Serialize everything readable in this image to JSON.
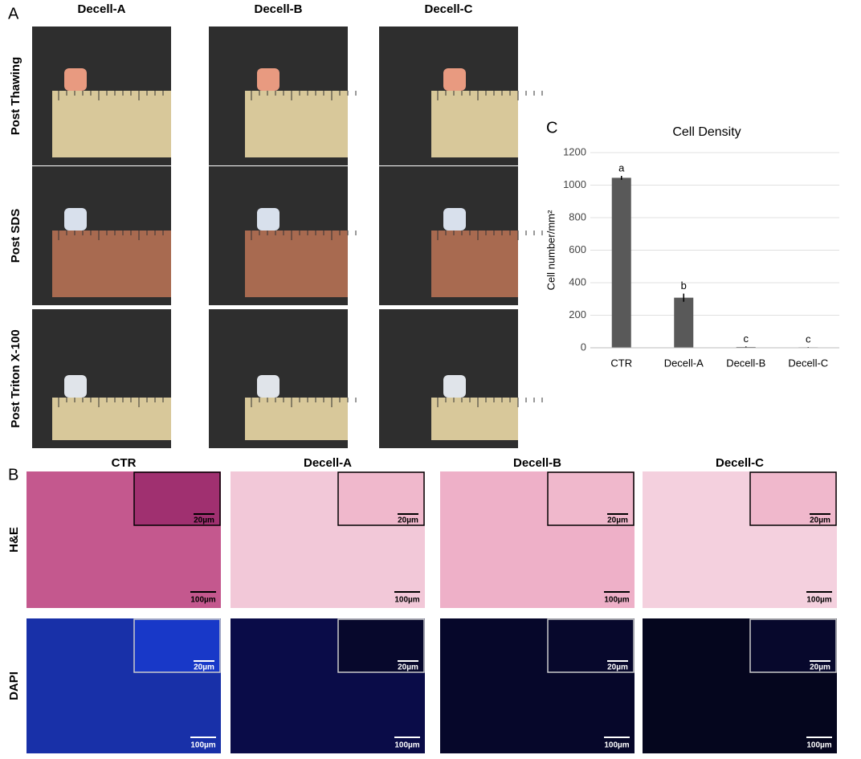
{
  "panel_a": {
    "label": "A",
    "columns": [
      "Decell-A",
      "Decell-B",
      "Decell-C"
    ],
    "rows": [
      "Post Thawing",
      "Post SDS",
      "Post Triton X-100"
    ]
  },
  "panel_b": {
    "label": "B",
    "columns": [
      "CTR",
      "Decell-A",
      "Decell-B",
      "Decell-C"
    ],
    "rows": [
      "H&E",
      "DAPI"
    ],
    "scale_main": "100µm",
    "scale_inset": "20µm"
  },
  "chart_data": {
    "panel_label": "C",
    "type": "bar",
    "title": "Cell Density",
    "y_label": "Cell number/mm²",
    "categories": [
      "CTR",
      "Decell-A",
      "Decell-B",
      "Decell-C"
    ],
    "values": [
      1045,
      308,
      5,
      3
    ],
    "errors": [
      12,
      25,
      3,
      2
    ],
    "annotations": [
      "a",
      "b",
      "c",
      "c"
    ],
    "color": "#595959",
    "ylim": [
      0,
      1200
    ],
    "yticks": [
      0,
      200,
      400,
      600,
      800,
      1000,
      1200
    ],
    "grid": true
  }
}
